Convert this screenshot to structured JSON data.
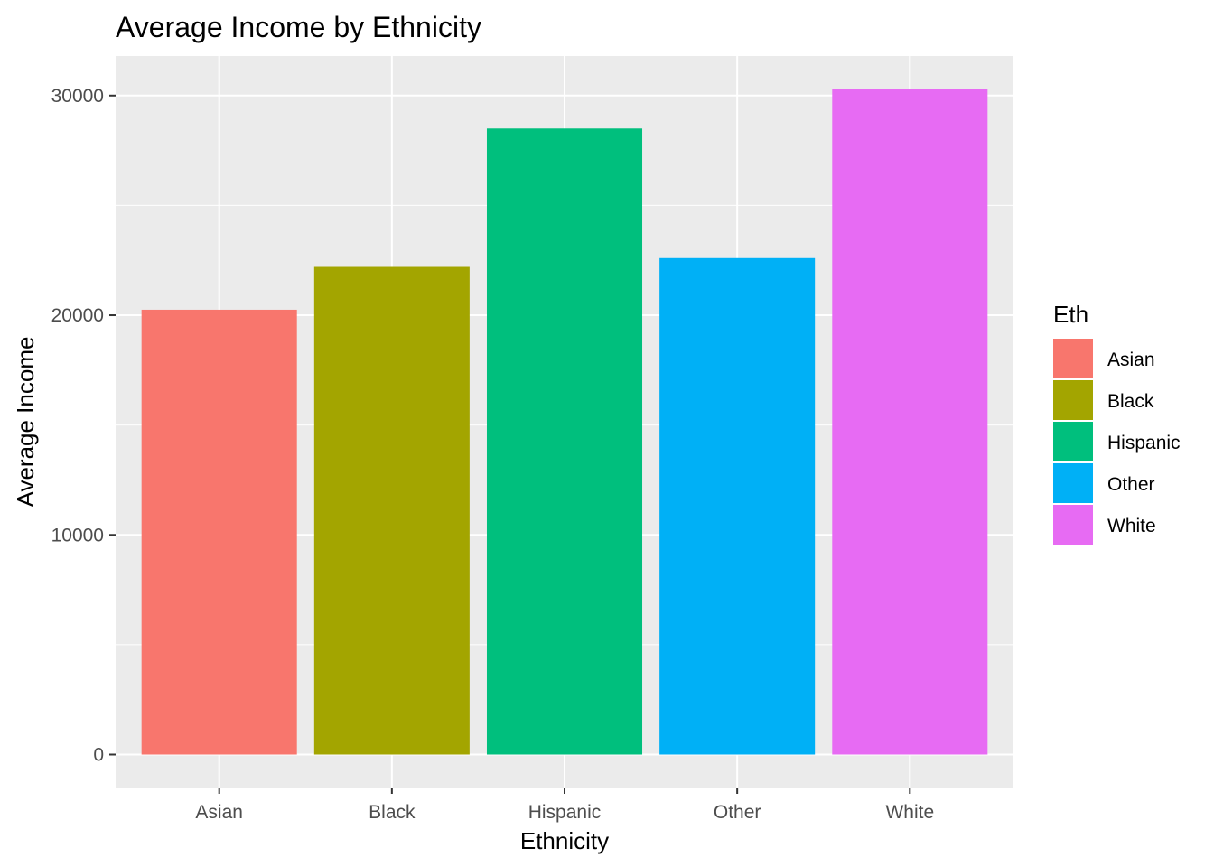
{
  "chart_data": {
    "type": "bar",
    "title": "Average Income by Ethnicity",
    "xlabel": "Ethnicity",
    "ylabel": "Average Income",
    "categories": [
      "Asian",
      "Black",
      "Hispanic",
      "Other",
      "White"
    ],
    "values": [
      20250,
      22200,
      28500,
      22600,
      30300
    ],
    "colors": [
      "#F8766D",
      "#A3A500",
      "#00BF7D",
      "#00B0F6",
      "#E76BF3"
    ],
    "ylim": [
      -1500,
      31800
    ],
    "yticks": [
      0,
      10000,
      20000,
      30000
    ],
    "ytick_labels": [
      "0",
      "10000",
      "20000",
      "30000"
    ],
    "grid": true,
    "panel_background": "#EBEBEB",
    "legend": {
      "title": "Eth",
      "placement": "right",
      "entries": [
        "Asian",
        "Black",
        "Hispanic",
        "Other",
        "White"
      ]
    }
  }
}
